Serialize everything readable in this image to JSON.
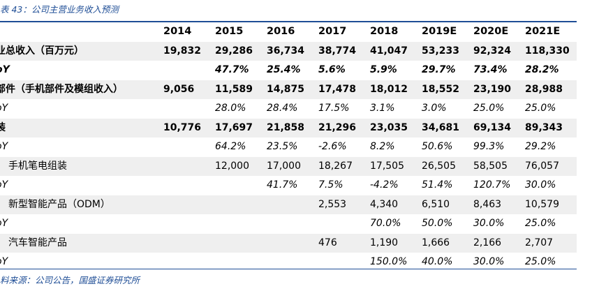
{
  "caption": "表 43：公司主营业务收入预测",
  "source": "料来源：公司公告，国盛证券研究所",
  "columns": [
    "2014",
    "2015",
    "2016",
    "2017",
    "2018",
    "2019E",
    "2020E",
    "2021E"
  ],
  "rows": [
    {
      "label": "业总收入（百万元）",
      "bold": true,
      "italic": false,
      "indent": false,
      "shade": true,
      "values": [
        "19,832",
        "29,286",
        "36,734",
        "38,774",
        "41,047",
        "53,233",
        "92,324",
        "118,330"
      ]
    },
    {
      "label": "oY",
      "bold": true,
      "italic": true,
      "indent": false,
      "shade": false,
      "values": [
        "",
        "47.7%",
        "25.4%",
        "5.6%",
        "5.9%",
        "29.7%",
        "73.4%",
        "28.2%"
      ]
    },
    {
      "label": "部件（手机部件及模组收入）",
      "bold": true,
      "italic": false,
      "indent": false,
      "shade": true,
      "values": [
        "9,056",
        "11,589",
        "14,875",
        "17,478",
        "18,012",
        "18,552",
        "23,190",
        "28,988"
      ]
    },
    {
      "label": "oY",
      "bold": false,
      "italic": true,
      "indent": false,
      "shade": false,
      "values": [
        "",
        "28.0%",
        "28.4%",
        "17.5%",
        "3.1%",
        "3.0%",
        "25.0%",
        "25.0%"
      ]
    },
    {
      "label": "装",
      "bold": true,
      "italic": false,
      "indent": false,
      "shade": true,
      "values": [
        "10,776",
        "17,697",
        "21,858",
        "21,296",
        "23,035",
        "34,681",
        "69,134",
        "89,343"
      ]
    },
    {
      "label": "oY",
      "bold": false,
      "italic": true,
      "indent": false,
      "shade": false,
      "values": [
        "",
        "64.2%",
        "23.5%",
        "-2.6%",
        "8.2%",
        "50.6%",
        "99.3%",
        "29.2%"
      ]
    },
    {
      "label": "手机笔电组装",
      "bold": false,
      "italic": false,
      "indent": true,
      "shade": true,
      "values": [
        "",
        "12,000",
        "17,000",
        "18,267",
        "17,505",
        "26,505",
        "58,505",
        "76,057"
      ]
    },
    {
      "label": "oY",
      "bold": false,
      "italic": true,
      "indent": false,
      "shade": false,
      "values": [
        "",
        "",
        "41.7%",
        "7.5%",
        "-4.2%",
        "51.4%",
        "120.7%",
        "30.0%"
      ]
    },
    {
      "label": "新型智能产品（ODM）",
      "bold": false,
      "italic": false,
      "indent": true,
      "shade": true,
      "values": [
        "",
        "",
        "",
        "2,553",
        "4,340",
        "6,510",
        "8,463",
        "10,579"
      ]
    },
    {
      "label": "oY",
      "bold": false,
      "italic": true,
      "indent": false,
      "shade": false,
      "values": [
        "",
        "",
        "",
        "",
        "70.0%",
        "50.0%",
        "30.0%",
        "25.0%"
      ]
    },
    {
      "label": "汽车智能产品",
      "bold": false,
      "italic": false,
      "indent": true,
      "shade": true,
      "values": [
        "",
        "",
        "",
        "476",
        "1,190",
        "1,666",
        "2,166",
        "2,707"
      ]
    },
    {
      "label": "oY",
      "bold": false,
      "italic": true,
      "indent": false,
      "shade": false,
      "values": [
        "",
        "",
        "",
        "",
        "150.0%",
        "40.0%",
        "30.0%",
        "25.0%"
      ]
    }
  ]
}
